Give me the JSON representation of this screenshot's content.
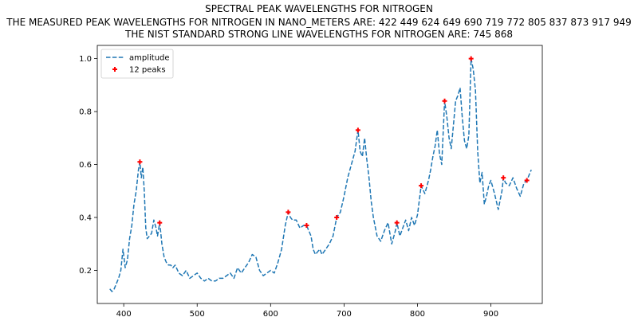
{
  "chart_data": {
    "type": "line",
    "title": "SPECTRAL PEAK WAVELENGTHS FOR NITROGEN",
    "subtitle_lines": [
      "THE MEASURED PEAK WAVELENGTHS FOR NITROGEN IN NANO_METERS ARE: 422 449 624 649 690 719 772 805 837 873 917 949",
      "THE NIST STANDARD STRONG LINE WAVELENGTHS FOR NITROGEN ARE: 745 868"
    ],
    "xlabel": "",
    "ylabel": "",
    "xlim": [
      364,
      970
    ],
    "ylim": [
      0.075,
      1.05
    ],
    "xticks": [
      400,
      500,
      600,
      700,
      800,
      900
    ],
    "yticks": [
      0.2,
      0.4,
      0.6,
      0.8,
      1.0
    ],
    "ytick_labels": [
      "0.2",
      "0.4",
      "0.6",
      "0.8",
      "1.0"
    ],
    "grid": false,
    "legend_position": "top-left",
    "series": [
      {
        "name": "amplitude",
        "style": "dashed",
        "color": "#1f77b4",
        "x": [
          381,
          384,
          387,
          390,
          393,
          396,
          399,
          402,
          405,
          408,
          411,
          414,
          417,
          420,
          422,
          424,
          426,
          428,
          430,
          432,
          435,
          438,
          441,
          444,
          446,
          449,
          452,
          455,
          458,
          461,
          464,
          467,
          470,
          475,
          480,
          485,
          490,
          495,
          500,
          505,
          510,
          515,
          520,
          525,
          530,
          535,
          540,
          545,
          550,
          555,
          560,
          565,
          570,
          575,
          580,
          585,
          590,
          595,
          600,
          605,
          610,
          615,
          620,
          624,
          627,
          630,
          635,
          640,
          645,
          649,
          652,
          655,
          658,
          661,
          664,
          667,
          670,
          675,
          680,
          685,
          690,
          695,
          700,
          705,
          710,
          715,
          719,
          722,
          725,
          728,
          731,
          734,
          737,
          740,
          745,
          750,
          755,
          760,
          765,
          770,
          772,
          776,
          780,
          784,
          788,
          792,
          796,
          800,
          805,
          810,
          815,
          818,
          821,
          824,
          827,
          830,
          833,
          837,
          840,
          843,
          846,
          849,
          852,
          855,
          858,
          861,
          864,
          867,
          870,
          873,
          876,
          879,
          882,
          885,
          888,
          891,
          894,
          897,
          900,
          905,
          910,
          915,
          917,
          920,
          925,
          930,
          935,
          940,
          945,
          949,
          952,
          955
        ],
        "y": [
          0.13,
          0.12,
          0.13,
          0.15,
          0.17,
          0.2,
          0.28,
          0.21,
          0.24,
          0.32,
          0.37,
          0.45,
          0.5,
          0.58,
          0.61,
          0.55,
          0.59,
          0.5,
          0.36,
          0.32,
          0.33,
          0.34,
          0.39,
          0.36,
          0.33,
          0.38,
          0.3,
          0.25,
          0.23,
          0.22,
          0.22,
          0.21,
          0.22,
          0.19,
          0.18,
          0.2,
          0.17,
          0.18,
          0.19,
          0.17,
          0.16,
          0.17,
          0.16,
          0.16,
          0.17,
          0.17,
          0.18,
          0.19,
          0.17,
          0.21,
          0.19,
          0.21,
          0.23,
          0.26,
          0.25,
          0.2,
          0.18,
          0.19,
          0.2,
          0.19,
          0.23,
          0.28,
          0.37,
          0.42,
          0.4,
          0.39,
          0.39,
          0.36,
          0.37,
          0.37,
          0.35,
          0.33,
          0.28,
          0.26,
          0.27,
          0.28,
          0.26,
          0.28,
          0.3,
          0.33,
          0.4,
          0.42,
          0.48,
          0.55,
          0.6,
          0.65,
          0.73,
          0.65,
          0.63,
          0.7,
          0.62,
          0.55,
          0.46,
          0.4,
          0.33,
          0.31,
          0.35,
          0.38,
          0.3,
          0.35,
          0.38,
          0.33,
          0.36,
          0.39,
          0.35,
          0.4,
          0.37,
          0.41,
          0.52,
          0.49,
          0.54,
          0.58,
          0.63,
          0.67,
          0.73,
          0.64,
          0.6,
          0.84,
          0.78,
          0.7,
          0.66,
          0.75,
          0.84,
          0.86,
          0.89,
          0.78,
          0.69,
          0.66,
          0.71,
          1.0,
          0.96,
          0.88,
          0.65,
          0.53,
          0.57,
          0.45,
          0.48,
          0.52,
          0.54,
          0.49,
          0.43,
          0.5,
          0.55,
          0.53,
          0.52,
          0.55,
          0.51,
          0.48,
          0.53,
          0.54,
          0.56,
          0.58
        ]
      },
      {
        "name": "12 peaks",
        "style": "markers",
        "marker": "+",
        "color": "#ff0000",
        "x": [
          422,
          449,
          624,
          649,
          690,
          719,
          772,
          805,
          837,
          873,
          917,
          949
        ],
        "y": [
          0.61,
          0.38,
          0.42,
          0.37,
          0.4,
          0.73,
          0.38,
          0.52,
          0.84,
          1.0,
          0.55,
          0.54
        ]
      }
    ]
  }
}
